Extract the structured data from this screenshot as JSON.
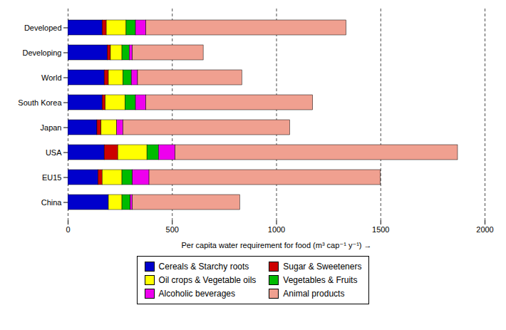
{
  "chart_data": {
    "type": "bar",
    "orientation": "horizontal",
    "stacked": true,
    "categories": [
      "China",
      "EU15",
      "USA",
      "Japan",
      "South Korea",
      "World",
      "Developing",
      "Developed"
    ],
    "series": [
      {
        "name": "Cereals & Starchy roots",
        "color": "#0000cc",
        "values": [
          195,
          145,
          175,
          140,
          165,
          175,
          190,
          165
        ]
      },
      {
        "name": "Sugar & Sweeteners",
        "color": "#cc0000",
        "values": [
          0,
          20,
          65,
          20,
          15,
          20,
          15,
          20
        ]
      },
      {
        "name": "Oil crops & Vegetable oils",
        "color": "#ffff00",
        "values": [
          65,
          95,
          140,
          75,
          95,
          70,
          55,
          95
        ]
      },
      {
        "name": "Vegetables & Fruits",
        "color": "#00bb00",
        "values": [
          40,
          50,
          55,
          0,
          50,
          40,
          35,
          45
        ]
      },
      {
        "name": "Alcoholic beverages",
        "color": "#ee00ee",
        "values": [
          10,
          80,
          80,
          30,
          50,
          30,
          15,
          50
        ]
      },
      {
        "name": "Animal products",
        "color": "#f0a090",
        "values": [
          515,
          1110,
          1355,
          800,
          800,
          500,
          340,
          960
        ]
      }
    ],
    "xlabel": "Per capita water requirement for food (m³ cap⁻¹ y⁻¹)",
    "xlim": [
      0,
      2000
    ],
    "xticks": [
      0,
      500,
      1000,
      1500,
      2000
    ],
    "grid": "x",
    "legend": "bottom"
  }
}
